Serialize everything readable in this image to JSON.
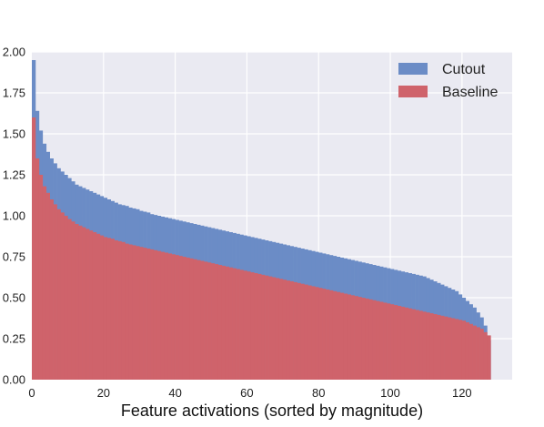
{
  "chart_data": {
    "type": "bar",
    "xlabel": "Feature activations (sorted by magnitude)",
    "ylabel": "",
    "title": "",
    "xlim": [
      0,
      134
    ],
    "ylim": [
      0,
      2.0
    ],
    "x_ticks": [
      "0",
      "20",
      "40",
      "60",
      "80",
      "100",
      "120"
    ],
    "y_ticks": [
      "0.00",
      "0.25",
      "0.50",
      "0.75",
      "1.00",
      "1.25",
      "1.50",
      "1.75",
      "2.00"
    ],
    "x_tick_values": [
      0,
      20,
      40,
      60,
      80,
      100,
      120
    ],
    "y_tick_values": [
      0,
      0.25,
      0.5,
      0.75,
      1.0,
      1.25,
      1.5,
      1.75,
      2.0
    ],
    "grid": true,
    "legend_position": "top-right",
    "colors": {
      "Cutout": "#6b8cc6",
      "Baseline": "#cf636b",
      "background": "#eaeaf2",
      "grid": "#ffffff"
    },
    "num_bins": 128,
    "series": [
      {
        "name": "Cutout",
        "x_start": 0,
        "bin_width": 1,
        "values": [
          1.95,
          1.64,
          1.52,
          1.44,
          1.39,
          1.35,
          1.32,
          1.29,
          1.27,
          1.25,
          1.23,
          1.21,
          1.19,
          1.18,
          1.17,
          1.16,
          1.15,
          1.14,
          1.13,
          1.12,
          1.11,
          1.1,
          1.09,
          1.08,
          1.07,
          1.065,
          1.06,
          1.05,
          1.045,
          1.04,
          1.03,
          1.025,
          1.02,
          1.01,
          1.005,
          1.0,
          0.995,
          0.99,
          0.985,
          0.98,
          0.975,
          0.97,
          0.965,
          0.96,
          0.955,
          0.95,
          0.945,
          0.94,
          0.935,
          0.93,
          0.925,
          0.92,
          0.915,
          0.91,
          0.905,
          0.9,
          0.895,
          0.89,
          0.885,
          0.88,
          0.875,
          0.87,
          0.865,
          0.86,
          0.855,
          0.85,
          0.845,
          0.84,
          0.835,
          0.83,
          0.825,
          0.82,
          0.815,
          0.81,
          0.805,
          0.8,
          0.795,
          0.79,
          0.785,
          0.78,
          0.775,
          0.77,
          0.765,
          0.76,
          0.755,
          0.75,
          0.745,
          0.74,
          0.735,
          0.73,
          0.725,
          0.72,
          0.715,
          0.71,
          0.705,
          0.7,
          0.695,
          0.69,
          0.685,
          0.68,
          0.675,
          0.67,
          0.665,
          0.66,
          0.655,
          0.65,
          0.645,
          0.64,
          0.635,
          0.63,
          0.62,
          0.61,
          0.6,
          0.59,
          0.58,
          0.57,
          0.56,
          0.55,
          0.54,
          0.52,
          0.5,
          0.48,
          0.46,
          0.44,
          0.41,
          0.38,
          0.33,
          0.24
        ]
      },
      {
        "name": "Baseline",
        "x_start": 0,
        "bin_width": 1,
        "values": [
          1.6,
          1.35,
          1.25,
          1.18,
          1.14,
          1.1,
          1.07,
          1.04,
          1.02,
          1.0,
          0.98,
          0.965,
          0.95,
          0.94,
          0.93,
          0.92,
          0.91,
          0.9,
          0.89,
          0.88,
          0.87,
          0.865,
          0.86,
          0.85,
          0.845,
          0.84,
          0.83,
          0.825,
          0.82,
          0.815,
          0.81,
          0.805,
          0.8,
          0.795,
          0.79,
          0.785,
          0.78,
          0.775,
          0.77,
          0.765,
          0.76,
          0.755,
          0.75,
          0.745,
          0.74,
          0.735,
          0.73,
          0.725,
          0.72,
          0.715,
          0.71,
          0.705,
          0.7,
          0.695,
          0.69,
          0.685,
          0.68,
          0.675,
          0.67,
          0.665,
          0.66,
          0.655,
          0.65,
          0.645,
          0.64,
          0.635,
          0.63,
          0.625,
          0.62,
          0.615,
          0.61,
          0.605,
          0.6,
          0.595,
          0.59,
          0.585,
          0.58,
          0.575,
          0.57,
          0.565,
          0.56,
          0.555,
          0.55,
          0.545,
          0.54,
          0.535,
          0.53,
          0.525,
          0.52,
          0.515,
          0.51,
          0.505,
          0.5,
          0.495,
          0.49,
          0.485,
          0.48,
          0.475,
          0.47,
          0.465,
          0.46,
          0.455,
          0.45,
          0.445,
          0.44,
          0.435,
          0.43,
          0.425,
          0.42,
          0.415,
          0.41,
          0.405,
          0.4,
          0.395,
          0.39,
          0.385,
          0.38,
          0.375,
          0.37,
          0.365,
          0.36,
          0.35,
          0.34,
          0.33,
          0.32,
          0.31,
          0.29,
          0.27
        ]
      }
    ]
  }
}
